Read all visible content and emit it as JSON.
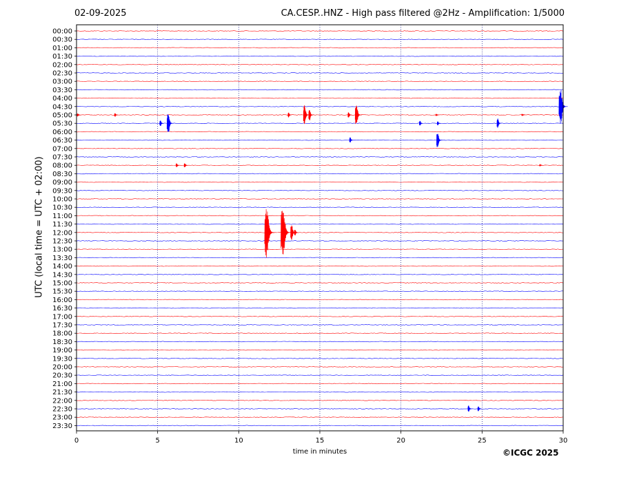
{
  "header": {
    "date": "02-09-2025",
    "title": "CA.CESP..HNZ - High pass filtered @2Hz - Amplification: 1/5000"
  },
  "footer": {
    "copyright": "©ICGC 2025"
  },
  "chart_data": {
    "type": "line",
    "title": "CA.CESP..HNZ - High pass filtered @2Hz - Amplification: 1/5000",
    "xlabel": "time in minutes",
    "ylabel": "UTC (local time = UTC + 02:00)",
    "xlim": [
      0,
      30
    ],
    "xticks": [
      0,
      5,
      10,
      15,
      20,
      25,
      30
    ],
    "yticks": [
      "00:00",
      "00:30",
      "01:00",
      "01:30",
      "02:00",
      "02:30",
      "03:00",
      "03:30",
      "04:00",
      "04:30",
      "05:00",
      "05:30",
      "06:00",
      "06:30",
      "07:00",
      "07:30",
      "08:00",
      "08:30",
      "09:00",
      "09:30",
      "10:00",
      "10:30",
      "11:00",
      "11:30",
      "12:00",
      "12:30",
      "13:00",
      "13:30",
      "14:00",
      "14:30",
      "15:00",
      "15:30",
      "16:00",
      "16:30",
      "17:00",
      "17:30",
      "18:00",
      "18:30",
      "19:00",
      "19:30",
      "20:00",
      "20:30",
      "21:00",
      "21:30",
      "22:00",
      "22:30",
      "23:00",
      "23:30"
    ],
    "vertical_grid": "dotted",
    "colors": {
      "even_rows": "#ff0000",
      "odd_rows": "#0000ff",
      "grid": "#000080"
    },
    "events": [
      {
        "row": "05:00",
        "minute": 0.1,
        "amplitude": 0.2
      },
      {
        "row": "05:00",
        "minute": 2.4,
        "amplitude": 0.25
      },
      {
        "row": "05:00",
        "minute": 13.1,
        "amplitude": 0.3
      },
      {
        "row": "05:00",
        "minute": 14.1,
        "amplitude": 1.2
      },
      {
        "row": "05:00",
        "minute": 14.4,
        "amplitude": 0.7
      },
      {
        "row": "05:00",
        "minute": 16.8,
        "amplitude": 0.35
      },
      {
        "row": "05:00",
        "minute": 17.3,
        "amplitude": 1.4
      },
      {
        "row": "05:00",
        "minute": 22.2,
        "amplitude": 0.15
      },
      {
        "row": "05:00",
        "minute": 27.5,
        "amplitude": 0.15
      },
      {
        "row": "05:30",
        "minute": 5.2,
        "amplitude": 0.4
      },
      {
        "row": "05:30",
        "minute": 5.7,
        "amplitude": 1.4
      },
      {
        "row": "05:30",
        "minute": 21.2,
        "amplitude": 0.3
      },
      {
        "row": "05:30",
        "minute": 22.3,
        "amplitude": 0.25
      },
      {
        "row": "05:30",
        "minute": 26.0,
        "amplitude": 0.6
      },
      {
        "row": "04:30",
        "minute": 29.9,
        "amplitude": 2.2
      },
      {
        "row": "06:30",
        "minute": 16.9,
        "amplitude": 0.35
      },
      {
        "row": "06:30",
        "minute": 22.3,
        "amplitude": 1.0
      },
      {
        "row": "08:00",
        "minute": 6.2,
        "amplitude": 0.25
      },
      {
        "row": "08:00",
        "minute": 6.7,
        "amplitude": 0.3
      },
      {
        "row": "08:00",
        "minute": 28.6,
        "amplitude": 0.15
      },
      {
        "row": "12:00",
        "minute": 11.8,
        "amplitude": 3.0
      },
      {
        "row": "12:00",
        "minute": 12.8,
        "amplitude": 3.0
      },
      {
        "row": "12:00",
        "minute": 13.3,
        "amplitude": 1.0
      },
      {
        "row": "12:00",
        "minute": 13.5,
        "amplitude": 0.4
      },
      {
        "row": "22:30",
        "minute": 24.2,
        "amplitude": 0.4
      },
      {
        "row": "22:30",
        "minute": 24.8,
        "amplitude": 0.3
      }
    ]
  }
}
